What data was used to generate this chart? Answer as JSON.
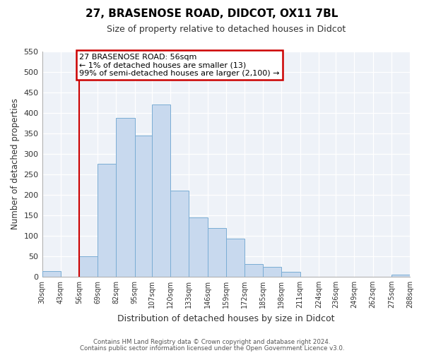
{
  "title": "27, BRASENOSE ROAD, DIDCOT, OX11 7BL",
  "subtitle": "Size of property relative to detached houses in Didcot",
  "xlabel": "Distribution of detached houses by size in Didcot",
  "ylabel": "Number of detached properties",
  "bar_edges": [
    30,
    43,
    56,
    69,
    82,
    95,
    107,
    120,
    133,
    146,
    159,
    172,
    185,
    198,
    211,
    224,
    236,
    249,
    262,
    275,
    288
  ],
  "bar_heights": [
    13,
    0,
    50,
    275,
    388,
    345,
    420,
    210,
    145,
    118,
    92,
    31,
    23,
    12,
    0,
    0,
    0,
    0,
    0,
    5
  ],
  "tick_labels": [
    "30sqm",
    "43sqm",
    "56sqm",
    "69sqm",
    "82sqm",
    "95sqm",
    "107sqm",
    "120sqm",
    "133sqm",
    "146sqm",
    "159sqm",
    "172sqm",
    "185sqm",
    "198sqm",
    "211sqm",
    "224sqm",
    "236sqm",
    "249sqm",
    "262sqm",
    "275sqm",
    "288sqm"
  ],
  "bar_color": "#c8d9ee",
  "bar_edge_color": "#7aadd4",
  "highlight_x": 56,
  "highlight_color": "#cc0000",
  "ylim": [
    0,
    550
  ],
  "xlim": [
    30,
    288
  ],
  "yticks": [
    0,
    50,
    100,
    150,
    200,
    250,
    300,
    350,
    400,
    450,
    500,
    550
  ],
  "annotation_text": "27 BRASENOSE ROAD: 56sqm\n← 1% of detached houses are smaller (13)\n99% of semi-detached houses are larger (2,100) →",
  "annotation_box_color": "#ffffff",
  "annotation_box_edge": "#cc0000",
  "plot_bg_color": "#eef2f8",
  "grid_color": "#ffffff",
  "footer1": "Contains HM Land Registry data © Crown copyright and database right 2024.",
  "footer2": "Contains public sector information licensed under the Open Government Licence v3.0."
}
